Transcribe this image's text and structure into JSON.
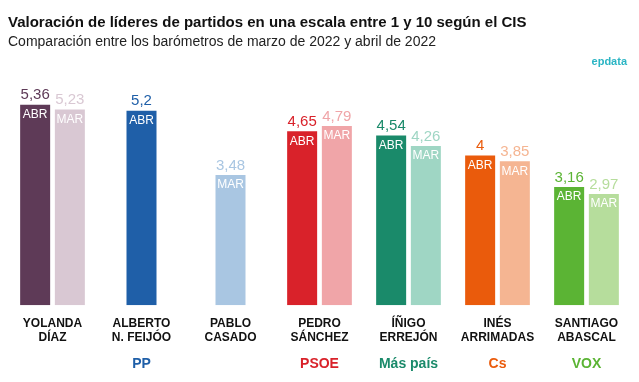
{
  "chart_data": {
    "type": "bar",
    "title": "Valoración de líderes de partidos en una escala entre 1 y 10 según el CIS",
    "subtitle": "Comparación entre los barómetros de marzo de 2022 y abril de 2022",
    "source": "epdata",
    "categories": [
      "YOLANDA DÍAZ",
      "ALBERTO N. FEIJÓO",
      "PABLO CASADO",
      "PEDRO SÁNCHEZ",
      "ÍÑIGO ERREJÓN",
      "INÉS ARRIMADAS",
      "SANTIAGO ABASCAL"
    ],
    "parties": [
      null,
      "PP",
      null,
      "PSOE",
      "Más país",
      "Cs",
      "VOX"
    ],
    "series": [
      {
        "name": "ABR",
        "colors": [
          "#5e3a57",
          "#1f5fa8",
          "#1f5fa8",
          "#d9222a",
          "#1a8a6a",
          "#ea5b0c",
          "#5bb434"
        ],
        "values": [
          5.36,
          5.2,
          null,
          4.65,
          4.54,
          4,
          3.16
        ],
        "value_labels": [
          "5,36",
          "5,2",
          null,
          "4,65",
          "4,54",
          "4",
          "3,16"
        ]
      },
      {
        "name": "MAR",
        "colors": [
          "#d9c8d3",
          "#a9c6e2",
          "#a9c6e2",
          "#f0a5a8",
          "#9fd6c4",
          "#f5b592",
          "#b6dd9c"
        ],
        "values": [
          5.23,
          null,
          3.48,
          4.79,
          4.26,
          3.85,
          2.97
        ],
        "value_labels": [
          "5,23",
          null,
          "3,48",
          "4,79",
          "4,26",
          "3,85",
          "2,97"
        ]
      }
    ],
    "ylim": [
      0,
      6
    ],
    "grid": false,
    "data_labels": true,
    "tick_labels": "x"
  }
}
